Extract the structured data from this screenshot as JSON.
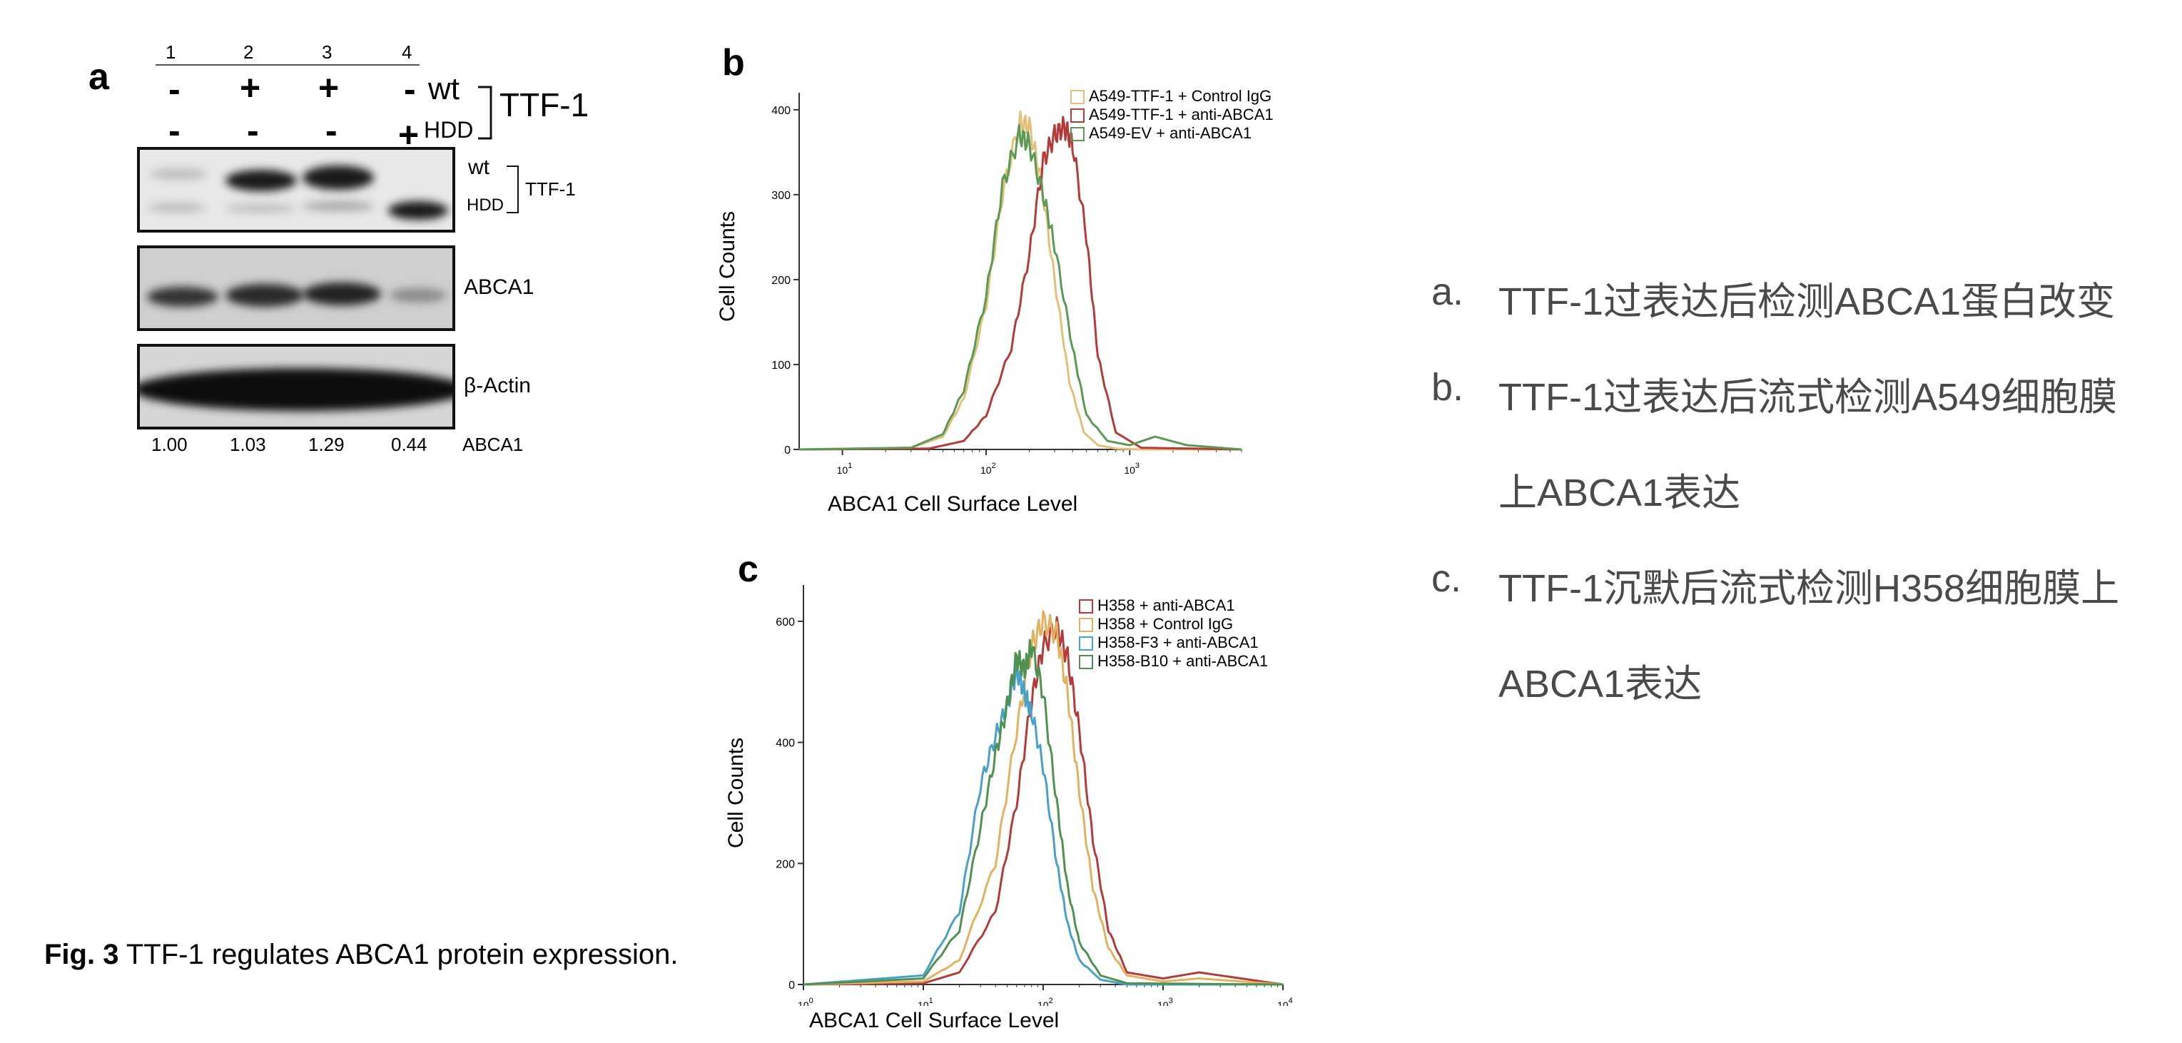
{
  "panel_a": {
    "letter": "a",
    "lane_numbers": [
      "1",
      "2",
      "3",
      "4"
    ],
    "row_wt_signs": [
      "-",
      "+",
      "+",
      "-"
    ],
    "row_hdd_signs": [
      "-",
      "-",
      "-",
      "+"
    ],
    "wt_label": "wt",
    "hdd_label": "HDD",
    "ttf1_label": "TTF-1",
    "blot1_wt": "wt",
    "blot1_hdd": "HDD",
    "blot1_ttf1": "TTF-1",
    "blot2_label": "ABCA1",
    "blot3_label": "β-Actin",
    "quant_values": [
      "1.00",
      "1.03",
      "1.29",
      "0.44"
    ],
    "quant_label": "ABCA1"
  },
  "panel_b": {
    "letter": "b",
    "ylabel": "Cell Counts",
    "xlabel": "ABCA1 Cell Surface Level",
    "yticks": [
      "0",
      "100",
      "200",
      "300",
      "400"
    ],
    "legend": [
      "A549-TTF-1 + Control IgG",
      "A549-TTF-1 + anti-ABCA1",
      "A549-EV + anti-ABCA1"
    ],
    "colors": [
      "#e2c07a",
      "#b53a3a",
      "#5b9a55"
    ]
  },
  "panel_c": {
    "letter": "c",
    "ylabel": "Cell Counts",
    "xlabel": "ABCA1 Cell Surface Level",
    "yticks": [
      "0",
      "200",
      "400",
      "600"
    ],
    "legend": [
      "H358 + anti-ABCA1",
      "H358 + Control IgG",
      "H358-F3 + anti-ABCA1",
      "H358-B10 + anti-ABCA1"
    ],
    "colors": [
      "#b53a3a",
      "#e2b260",
      "#4aa0c8",
      "#4e9150"
    ]
  },
  "chart_data": [
    {
      "type": "line",
      "ylabel": "Cell Counts",
      "xlabel": "ABCA1 Cell Surface Level",
      "xscale": "log",
      "xlim": [
        5,
        6000
      ],
      "ylim": [
        0,
        420
      ],
      "series": [
        {
          "name": "A549-TTF-1 + Control IgG",
          "x": [
            5,
            30,
            50,
            70,
            100,
            130,
            170,
            200,
            240,
            300,
            380,
            480,
            600,
            800,
            1200,
            6000
          ],
          "values": [
            0,
            2,
            15,
            60,
            170,
            300,
            385,
            380,
            320,
            200,
            80,
            20,
            5,
            1,
            0,
            0
          ]
        },
        {
          "name": "A549-TTF-1 + anti-ABCA1",
          "x": [
            5,
            40,
            70,
            100,
            150,
            200,
            250,
            300,
            350,
            400,
            500,
            600,
            800,
            1200,
            6000
          ],
          "values": [
            0,
            1,
            10,
            40,
            120,
            230,
            340,
            370,
            380,
            360,
            250,
            110,
            20,
            2,
            0
          ]
        },
        {
          "name": "A549-EV + anti-ABCA1",
          "x": [
            5,
            30,
            50,
            70,
            100,
            130,
            170,
            200,
            250,
            300,
            400,
            500,
            700,
            1000,
            1500,
            2500,
            6000
          ],
          "values": [
            0,
            2,
            18,
            70,
            180,
            310,
            370,
            360,
            300,
            240,
            120,
            40,
            10,
            5,
            15,
            5,
            0
          ]
        }
      ]
    },
    {
      "type": "line",
      "ylabel": "Cell Counts",
      "xlabel": "ABCA1 Cell Surface Level",
      "xscale": "log",
      "xlim": [
        1,
        10000
      ],
      "ylim": [
        0,
        660
      ],
      "series": [
        {
          "name": "H358 + anti-ABCA1",
          "x": [
            1,
            10,
            20,
            40,
            60,
            80,
            100,
            130,
            160,
            200,
            260,
            350,
            500,
            1000,
            2000,
            10000
          ],
          "values": [
            0,
            2,
            20,
            120,
            300,
            470,
            560,
            590,
            540,
            420,
            240,
            90,
            20,
            10,
            20,
            0
          ]
        },
        {
          "name": "H358 + Control IgG",
          "x": [
            1,
            10,
            20,
            40,
            60,
            80,
            100,
            130,
            160,
            200,
            260,
            350,
            500,
            1000,
            2000,
            10000
          ],
          "values": [
            0,
            5,
            40,
            200,
            420,
            560,
            600,
            580,
            480,
            320,
            160,
            60,
            15,
            5,
            10,
            0
          ]
        },
        {
          "name": "H358-F3 + anti-ABCA1",
          "x": [
            1,
            10,
            20,
            30,
            40,
            50,
            60,
            70,
            80,
            100,
            130,
            160,
            200,
            300,
            500,
            10000
          ],
          "values": [
            0,
            15,
            120,
            330,
            410,
            460,
            520,
            480,
            450,
            360,
            200,
            100,
            40,
            8,
            0,
            0
          ]
        },
        {
          "name": "H358-B10 + anti-ABCA1",
          "x": [
            1,
            10,
            20,
            30,
            40,
            50,
            60,
            70,
            80,
            100,
            130,
            160,
            200,
            300,
            500,
            10000
          ],
          "values": [
            0,
            10,
            90,
            260,
            380,
            460,
            540,
            520,
            560,
            480,
            300,
            160,
            70,
            15,
            2,
            0
          ]
        }
      ]
    }
  ],
  "bullets": [
    {
      "marker": "a.",
      "text": "TTF-1过表达后检测ABCA1蛋白改变"
    },
    {
      "marker": "b.",
      "text": "TTF-1过表达后流式检测A549细胞膜"
    },
    {
      "marker": "",
      "text": "上ABCA1表达"
    },
    {
      "marker": "c.",
      "text": "TTF-1沉默后流式检测H358细胞膜上"
    },
    {
      "marker": "",
      "text": "ABCA1表达"
    }
  ],
  "caption": {
    "bold": "Fig. 3",
    "text": " TTF-1 regulates ABCA1 protein expression."
  }
}
